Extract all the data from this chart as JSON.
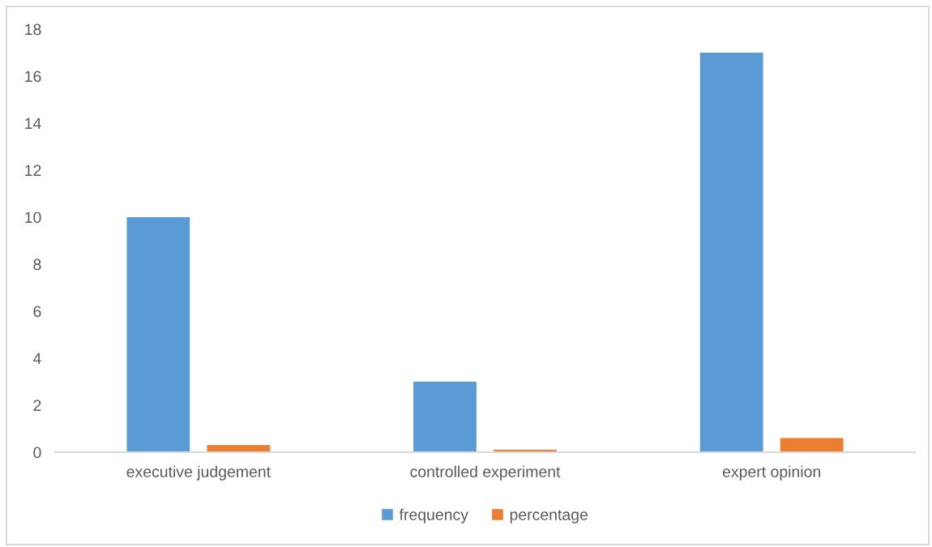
{
  "chart_data": {
    "type": "bar",
    "categories": [
      "executive judgement",
      "controlled experiment",
      "expert opinion"
    ],
    "series": [
      {
        "name": "frequency",
        "color": "#5b9bd5",
        "values": [
          10,
          3,
          17
        ]
      },
      {
        "name": "percentage",
        "color": "#ed7d31",
        "values": [
          0.3,
          0.1,
          0.6
        ]
      }
    ],
    "ylim": [
      0,
      18
    ],
    "yticks": [
      0,
      2,
      4,
      6,
      8,
      10,
      12,
      14,
      16,
      18
    ],
    "legend": "bottom"
  }
}
